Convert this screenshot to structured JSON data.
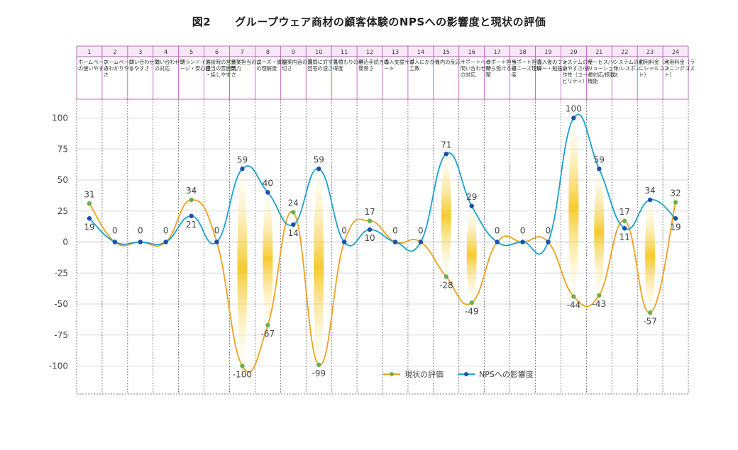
{
  "figure_label": "図2",
  "chart_data": {
    "type": "line",
    "title": "グループウェア商材の顧客体験のNPSへの影響度と現状の評価",
    "categories": [
      {
        "num": "1",
        "name": "ホームページの使いやすさ"
      },
      {
        "num": "2",
        "name": "ホームページのわかりやすさ"
      },
      {
        "num": "3",
        "name": "問い合わせのしやすさ"
      },
      {
        "num": "4",
        "name": "問い合わせ時の対応"
      },
      {
        "num": "5",
        "name": "ブランドイメージ・安心感"
      },
      {
        "num": "6",
        "name": "面談時の営業担当の雰囲気・話しやすさ"
      },
      {
        "num": "7",
        "name": "営業担当の説明力"
      },
      {
        "num": "8",
        "name": "ニーズ・課題の理解度"
      },
      {
        "num": "9",
        "name": "提案内容の適切さ"
      },
      {
        "num": "10",
        "name": "質問に対する回答の速さ"
      },
      {
        "num": "11",
        "name": "見積もりの納得度"
      },
      {
        "num": "12",
        "name": "申込手続きの簡易さ"
      },
      {
        "num": "13",
        "name": "導入支援サポート"
      },
      {
        "num": "14",
        "name": "導入にかかる工数"
      },
      {
        "num": "15",
        "name": "社内の反応"
      },
      {
        "num": "16",
        "name": "サポートへの問い合わせ時の対応"
      },
      {
        "num": "17",
        "name": "サポート担当から受ける提案"
      },
      {
        "num": "18",
        "name": "サポート担当のニーズ理解度"
      },
      {
        "num": "19",
        "name": "導入後のフォロー・勉強会"
      },
      {
        "num": "20",
        "name": "システムの使いやすさ/操作性（ユーザビリティ）"
      },
      {
        "num": "21",
        "name": "サービス/ソリューションの対応/搭載機能"
      },
      {
        "num": "22",
        "name": "システムの動作/レスポンス"
      },
      {
        "num": "23",
        "name": "利用料金（イニシャルコスト）"
      },
      {
        "num": "24",
        "name": "利用料金（ランニングコスト）"
      }
    ],
    "series": [
      {
        "name": "現状の評価",
        "color": "#f0a11e",
        "marker": "#6ab04c",
        "values": [
          31,
          0,
          0,
          0,
          34,
          0,
          -100,
          -67,
          24,
          -99,
          0,
          17,
          0,
          0,
          -28,
          -49,
          0,
          0,
          0,
          -44,
          -43,
          17,
          -57,
          32
        ]
      },
      {
        "name": "NPSへの影響度",
        "color": "#1ba1d0",
        "marker": "#1b4fa8",
        "values": [
          19,
          0,
          0,
          0,
          21,
          0,
          59,
          40,
          14,
          59,
          0,
          10,
          0,
          0,
          71,
          29,
          0,
          0,
          0,
          100,
          59,
          11,
          34,
          19
        ]
      }
    ],
    "y_ticks": [
      100,
      75,
      50,
      25,
      0,
      -25,
      -50,
      -75,
      -100
    ],
    "ylim": [
      -122,
      112
    ],
    "grid": true,
    "legend_position": "bottom-right"
  }
}
